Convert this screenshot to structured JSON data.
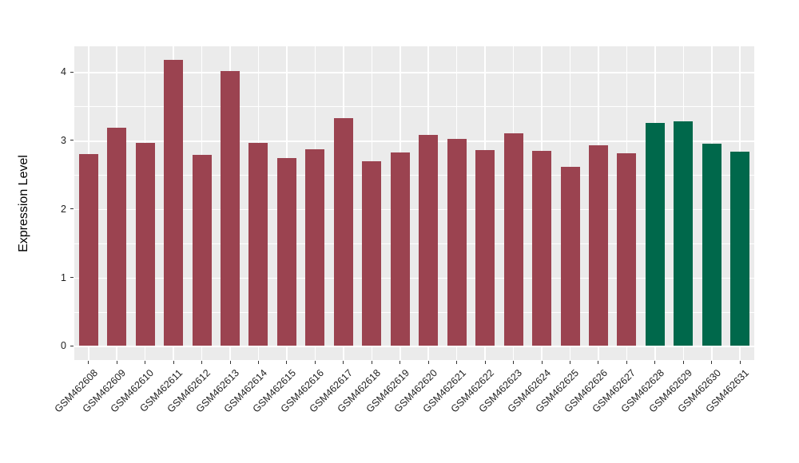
{
  "chart_data": {
    "type": "bar",
    "title": "",
    "xlabel": "",
    "ylabel": "Expression Level",
    "categories": [
      "GSM462608",
      "GSM462609",
      "GSM462610",
      "GSM462611",
      "GSM462612",
      "GSM462613",
      "GSM462614",
      "GSM462615",
      "GSM462616",
      "GSM462617",
      "GSM462618",
      "GSM462619",
      "GSM462620",
      "GSM462621",
      "GSM462622",
      "GSM462623",
      "GSM462624",
      "GSM462625",
      "GSM462626",
      "GSM462627",
      "GSM462628",
      "GSM462629",
      "GSM462630",
      "GSM462631"
    ],
    "values": [
      2.8,
      3.19,
      2.96,
      4.18,
      2.79,
      4.01,
      2.97,
      2.74,
      2.87,
      3.33,
      2.7,
      2.83,
      3.08,
      3.02,
      2.86,
      3.1,
      2.85,
      2.61,
      2.93,
      2.81,
      3.26,
      3.28,
      2.95,
      2.84
    ],
    "bar_groups": [
      "maroon",
      "maroon",
      "maroon",
      "maroon",
      "maroon",
      "maroon",
      "maroon",
      "maroon",
      "maroon",
      "maroon",
      "maroon",
      "maroon",
      "maroon",
      "maroon",
      "maroon",
      "maroon",
      "maroon",
      "maroon",
      "maroon",
      "maroon",
      "green",
      "green",
      "green",
      "green"
    ],
    "group_colors": {
      "maroon": "#9B4350",
      "green": "#00684B"
    },
    "yticks": [
      0,
      1,
      2,
      3,
      4
    ],
    "ylim": [
      0,
      4.4
    ],
    "grid": true,
    "legend": "none",
    "panel_bg": "#EBEBEB",
    "grid_color": "#FFFFFF",
    "axis_text_color": "#1F1F1F"
  }
}
